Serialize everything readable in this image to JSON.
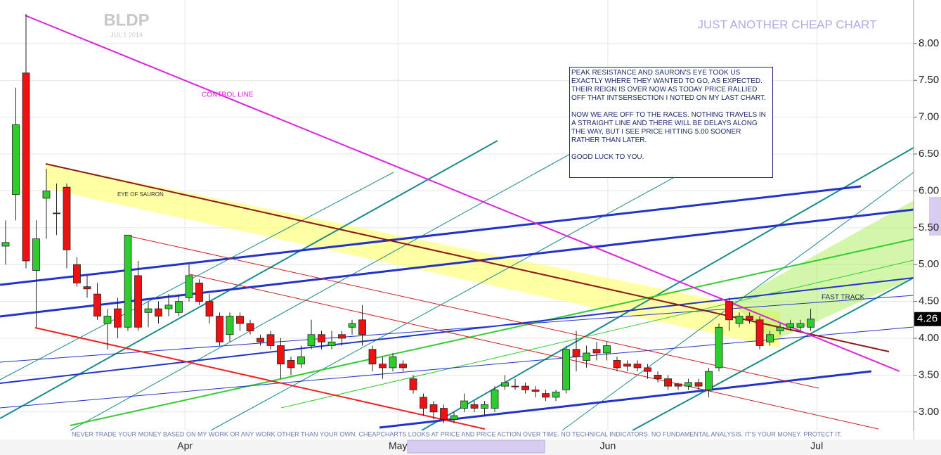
{
  "chart_data": {
    "type": "candlestick",
    "title": "BLDP",
    "subtitle": "JUL 1 2014",
    "banner": "JUST ANOTHER CHEAP CHART",
    "annotations": [
      "CONTROL LINE",
      "EYE OF SAURON",
      "FAST TRACK"
    ],
    "note": [
      "PEAK RESISTANCE AND SAURON'S EYE TOOK US EXACTLY WHERE THEY WANTED TO GO, AS EXPECTED. THEIR REIGN IS OVER NOW AS TODAY PRICE RALLIED OFF THAT INTSERSECTION I NOTED ON MY LAST CHART.",
      "NOW WE ARE OFF TO THE RACES. NOTHING TRAVELS IN A STRAIGHT LINE AND THERE WILL BE DELAYS ALONG THE WAY, BUT I SEE PRICE HITTING 5.00 SOONER RATHER THAN LATER.",
      "GOOD LUCK TO YOU."
    ],
    "footnote": "NEVER TRADE YOUR MONEY BASED ON MY WORK OR ANY WORK OTHER THAN YOUR OWN. CHEAPCHARTS LOOKS AT PRICE AND PRICE ACTION OVER TIME. NO TECHNICAL INDICATORS. NO FUNDAMENTAL ANALYSIS. IT'S YOUR MONEY. PROTECT IT.",
    "last_price": {
      "value": 4.26,
      "label": "4.26"
    },
    "up_color": "#2ecc2e",
    "down_color": "#ee1111",
    "xlim": [
      -0.55,
      89.1
    ],
    "xticks": [
      {
        "value": 17.6,
        "label": "Apr"
      },
      {
        "value": 38.5,
        "label": "May"
      },
      {
        "value": 59.1,
        "label": "Jun"
      },
      {
        "value": 79.6,
        "label": "Jul"
      }
    ],
    "ylim": [
      2.75,
      8.59
    ],
    "yticks": [
      {
        "value": 3,
        "label": "3.00"
      },
      {
        "value": 3.5,
        "label": "3.50"
      },
      {
        "value": 4,
        "label": "4.00"
      },
      {
        "value": 4.5,
        "label": "4.50"
      },
      {
        "value": 5,
        "label": "5.00"
      },
      {
        "value": 5.5,
        "label": "5.50"
      },
      {
        "value": 6,
        "label": "6.00"
      },
      {
        "value": 6.5,
        "label": "6.50"
      },
      {
        "value": 7,
        "label": "7.00"
      },
      {
        "value": 7.5,
        "label": "7.50"
      },
      {
        "value": 8,
        "label": "8.00"
      }
    ],
    "grid": true,
    "open": [
      5.25,
      5.95,
      7.6,
      4.92,
      5.9,
      5.7,
      6.05,
      5.0,
      4.7,
      4.6,
      4.2,
      4.4,
      4.15,
      4.85,
      4.35,
      4.4,
      4.4,
      4.35,
      4.55,
      4.75,
      4.5,
      4.3,
      4.05,
      4.3,
      4.2,
      4.0,
      4.05,
      3.9,
      3.7,
      3.65,
      3.9,
      4.05,
      3.9,
      4.05,
      4.15,
      4.25,
      3.85,
      3.65,
      3.6,
      3.65,
      3.45,
      3.2,
      3.1,
      3.05,
      2.9,
      3.05,
      3.1,
      3.05,
      3.05,
      3.35,
      3.35,
      3.35,
      3.3,
      3.25,
      3.2,
      3.3,
      3.85,
      3.7,
      3.85,
      3.8,
      3.7,
      3.65,
      3.65,
      3.6,
      3.5,
      3.45,
      3.38,
      3.35,
      3.4,
      3.3,
      3.6,
      4.5,
      4.2,
      4.3,
      4.25,
      3.95,
      4.1,
      4.15,
      4.15,
      4.15
    ],
    "high": [
      5.6,
      7.4,
      8.4,
      5.6,
      6.3,
      6.1,
      6.1,
      5.1,
      4.85,
      4.75,
      4.4,
      4.55,
      5.4,
      5.05,
      4.5,
      4.5,
      4.6,
      4.6,
      5.0,
      4.8,
      4.6,
      4.35,
      4.35,
      4.35,
      4.25,
      4.05,
      4.1,
      4.0,
      3.75,
      3.9,
      4.25,
      4.1,
      4.1,
      4.1,
      4.25,
      4.45,
      3.9,
      3.75,
      3.8,
      3.7,
      3.5,
      3.25,
      3.15,
      3.1,
      3.0,
      3.25,
      3.15,
      3.15,
      3.35,
      3.5,
      3.45,
      3.4,
      3.35,
      3.3,
      3.3,
      3.9,
      4.1,
      3.9,
      3.95,
      3.95,
      3.75,
      3.7,
      3.7,
      3.65,
      3.55,
      3.5,
      3.4,
      3.45,
      3.45,
      3.6,
      4.2,
      4.55,
      4.35,
      4.35,
      4.3,
      4.1,
      4.2,
      4.25,
      4.25,
      4.4
    ],
    "low": [
      5.0,
      5.6,
      4.95,
      4.15,
      5.35,
      5.4,
      4.95,
      4.7,
      4.55,
      4.25,
      3.85,
      4.0,
      4.1,
      4.1,
      4.15,
      4.2,
      4.3,
      4.3,
      4.5,
      4.45,
      4.2,
      3.9,
      3.95,
      4.1,
      4.05,
      3.9,
      3.85,
      3.45,
      3.5,
      3.6,
      3.85,
      3.85,
      3.85,
      3.9,
      4.05,
      3.9,
      3.55,
      3.45,
      3.55,
      3.55,
      3.25,
      2.95,
      2.9,
      2.85,
      2.85,
      3.0,
      3.0,
      2.95,
      3.0,
      3.3,
      3.3,
      3.25,
      3.2,
      3.15,
      3.15,
      3.25,
      3.55,
      3.6,
      3.7,
      3.7,
      3.55,
      3.55,
      3.55,
      3.45,
      3.4,
      3.3,
      3.3,
      3.3,
      3.3,
      3.2,
      3.55,
      4.1,
      4.15,
      4.2,
      3.85,
      3.9,
      4.05,
      4.1,
      4.1,
      4.1
    ],
    "close": [
      5.3,
      6.9,
      5.05,
      5.35,
      6.0,
      5.69,
      5.2,
      4.75,
      4.67,
      4.3,
      4.3,
      4.15,
      5.4,
      4.15,
      4.4,
      4.3,
      4.45,
      4.5,
      4.85,
      4.5,
      4.3,
      3.95,
      4.3,
      4.2,
      4.1,
      3.95,
      3.9,
      3.65,
      3.6,
      3.75,
      4.05,
      3.95,
      3.95,
      4.0,
      4.2,
      4.05,
      3.65,
      3.6,
      3.75,
      3.6,
      3.3,
      3.05,
      3.0,
      2.9,
      2.95,
      3.15,
      3.05,
      3.1,
      3.3,
      3.4,
      3.34,
      3.3,
      3.28,
      3.2,
      3.27,
      3.85,
      3.75,
      3.8,
      3.8,
      3.9,
      3.6,
      3.62,
      3.6,
      3.55,
      3.45,
      3.35,
      3.35,
      3.4,
      3.35,
      3.55,
      4.15,
      4.25,
      4.3,
      4.25,
      3.9,
      4.05,
      4.15,
      4.2,
      4.2,
      4.26
    ]
  }
}
